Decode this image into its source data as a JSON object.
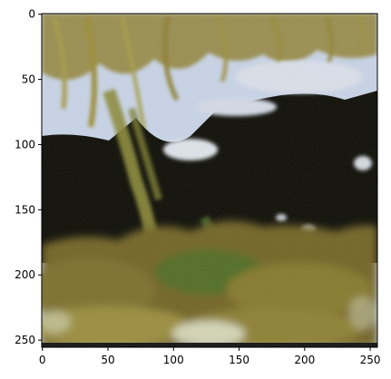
{
  "figure": {
    "image_description": "",
    "x_ticks": [
      "0",
      "50",
      "100",
      "150",
      "200",
      "250"
    ],
    "y_ticks": [
      "0",
      "50",
      "100",
      "150",
      "200",
      "250"
    ],
    "x_tick_values": [
      0,
      50,
      100,
      150,
      200,
      250
    ],
    "y_tick_values": [
      0,
      50,
      100,
      150,
      200,
      250
    ],
    "x_range": [
      -0.5,
      255.5
    ],
    "y_range": [
      -0.5,
      255.5
    ],
    "colors": {
      "sky": "#c8d6f0",
      "shadow": "#050605",
      "moss": "#8a7a2e",
      "foliage": "#5f6a24",
      "highlight": "#e3e6d6",
      "frame": "#000000"
    }
  }
}
